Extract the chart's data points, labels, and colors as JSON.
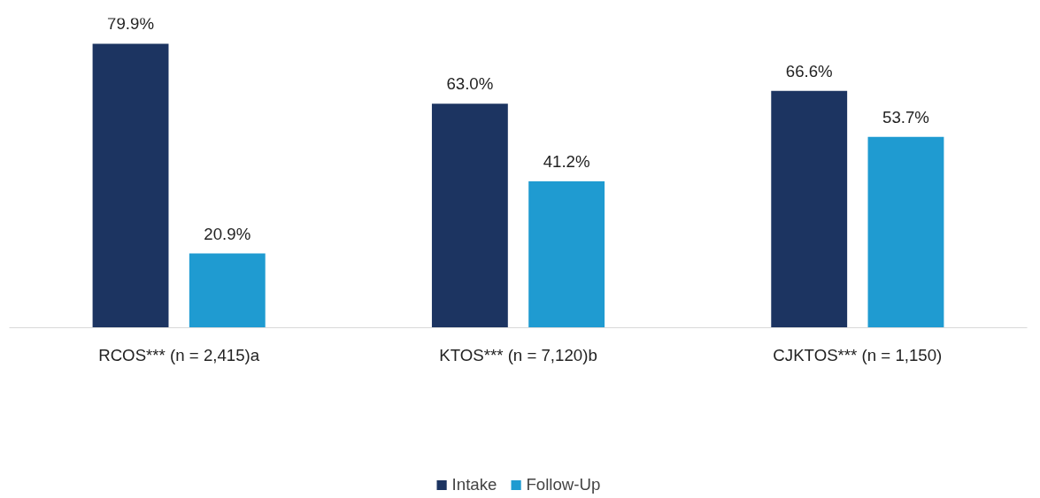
{
  "chart_data": {
    "type": "bar",
    "categories": [
      "RCOS*** (n = 2,415)a",
      "KTOS*** (n = 7,120)b",
      "CJKTOS*** (n = 1,150)"
    ],
    "series": [
      {
        "name": "Intake",
        "color": "#1c3461",
        "values": [
          79.9,
          63.0,
          66.6
        ],
        "value_labels": [
          "79.9%",
          "63.0%",
          "66.6%"
        ]
      },
      {
        "name": "Follow-Up",
        "color": "#1f9bd1",
        "values": [
          20.9,
          41.2,
          53.7
        ],
        "value_labels": [
          "20.9%",
          "41.2%",
          "53.7%"
        ]
      }
    ],
    "legend": "bottom"
  }
}
